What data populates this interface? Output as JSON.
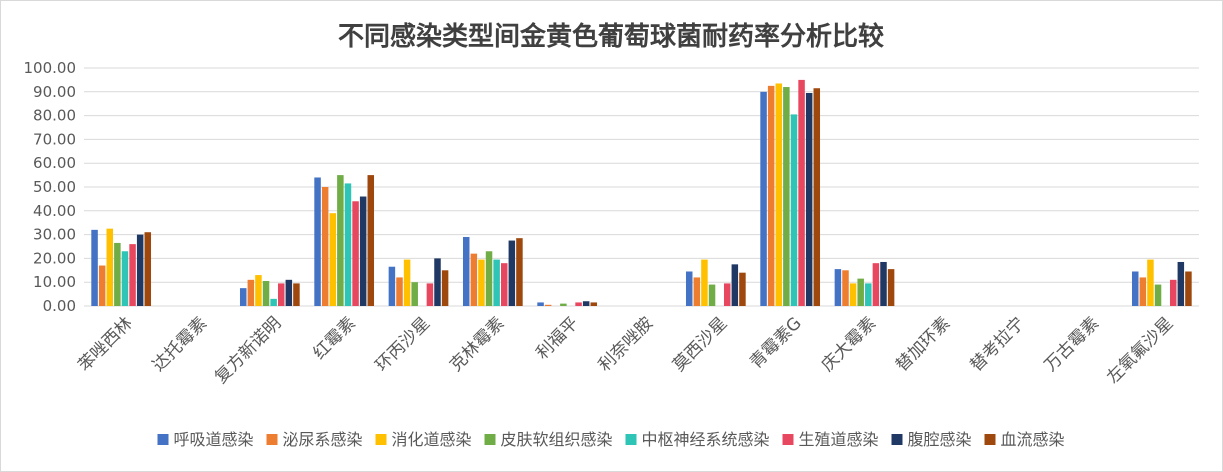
{
  "chart_data": {
    "type": "bar",
    "title": "不同感染类型间金黄色葡萄球菌耐药率分析比较",
    "xlabel": "",
    "ylabel": "",
    "ylim": [
      0,
      100
    ],
    "y_ticks": [
      "0.00",
      "10.00",
      "20.00",
      "30.00",
      "40.00",
      "50.00",
      "60.00",
      "70.00",
      "80.00",
      "90.00",
      "100.00"
    ],
    "grid": true,
    "legend_position": "bottom",
    "categories": [
      "苯唑西林",
      "达托霉素",
      "复方新诺明",
      "红霉素",
      "环丙沙星",
      "克林霉素",
      "利福平",
      "利奈唑胺",
      "莫西沙星",
      "青霉素G",
      "庆大霉素",
      "替加环素",
      "替考拉宁",
      "万古霉素",
      "左氧氟沙星"
    ],
    "series": [
      {
        "name": "呼吸道感染",
        "color": "#4472c4",
        "values": [
          32,
          0,
          7.5,
          54,
          16.5,
          29,
          1.5,
          0,
          14.5,
          90,
          15.5,
          0,
          0,
          0,
          14.5
        ]
      },
      {
        "name": "泌尿系感染",
        "color": "#ed7d31",
        "values": [
          17,
          0,
          11,
          50,
          12,
          22,
          0.5,
          0,
          12,
          92.5,
          15,
          0,
          0,
          0,
          12
        ]
      },
      {
        "name": "消化道感染",
        "color": "#ffc000",
        "values": [
          32.5,
          0,
          13,
          39,
          19.5,
          19.5,
          0,
          0,
          19.5,
          93.5,
          9.5,
          0,
          0,
          0,
          19.5
        ]
      },
      {
        "name": "皮肤软组织感染",
        "color": "#70ad47",
        "values": [
          26.5,
          0,
          10.5,
          55,
          10,
          23,
          1,
          0,
          9,
          92,
          11.5,
          0,
          0,
          0,
          9
        ]
      },
      {
        "name": "中枢神经系统感染",
        "color": "#2ec4b6",
        "values": [
          23,
          0,
          3,
          51.5,
          0,
          19.5,
          0,
          0,
          0,
          80.5,
          9.5,
          0,
          0,
          0,
          0
        ]
      },
      {
        "name": "生殖道感染",
        "color": "#e8485f",
        "values": [
          26,
          0,
          9.5,
          44,
          9.5,
          18,
          1.5,
          0,
          9.5,
          95,
          18,
          0,
          0,
          0,
          11
        ]
      },
      {
        "name": "腹腔感染",
        "color": "#203864",
        "values": [
          30,
          0,
          11,
          46,
          20,
          27.5,
          2,
          0,
          17.5,
          89.5,
          18.5,
          0,
          0,
          0,
          18.5
        ]
      },
      {
        "name": "血流感染",
        "color": "#9e480e",
        "values": [
          31,
          0,
          9.5,
          55,
          15,
          28.5,
          1.5,
          0,
          14,
          91.5,
          15.5,
          0,
          0,
          0,
          14.5
        ]
      }
    ]
  }
}
